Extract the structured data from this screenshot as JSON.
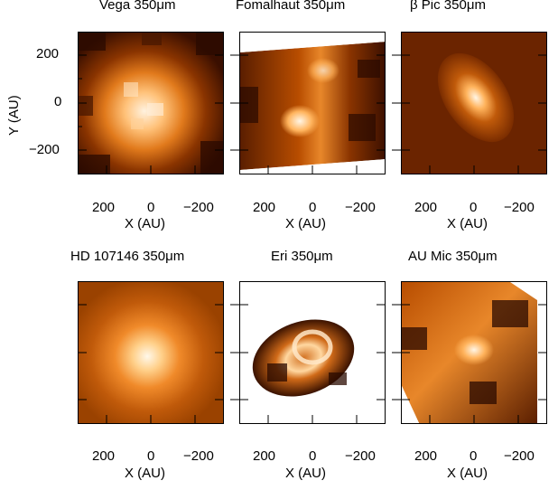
{
  "panels": [
    {
      "id": "vega",
      "title": "Vega   350μm"
    },
    {
      "id": "fomalhaut",
      "title": "Fomalhaut   350μm"
    },
    {
      "id": "beta-pic",
      "title": "β Pic   350μm"
    },
    {
      "id": "hd107146",
      "title": "HD 107146   350μm"
    },
    {
      "id": "eps-eri",
      "title": "Eri   350μm"
    },
    {
      "id": "au-mic",
      "title": "AU Mic   350μm"
    }
  ],
  "axes": {
    "ylabel": "Y (AU)",
    "xlabel": "X (AU)",
    "y_ticks": [
      "200",
      "0",
      "−200"
    ],
    "x_ticks": [
      "200",
      "0",
      "−200"
    ]
  },
  "colors": {
    "dark": "#2a0a00",
    "mid": "#b84d00",
    "bright": "#ffa640",
    "peak": "#fff6e6"
  }
}
